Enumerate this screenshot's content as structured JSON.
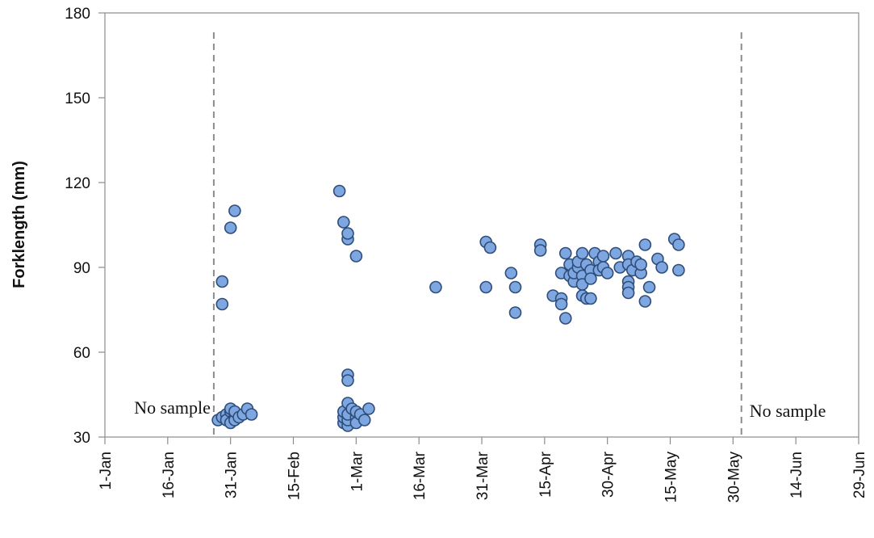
{
  "chart_data": {
    "type": "scatter",
    "title": "",
    "xlabel": "",
    "ylabel": "Forklength (mm)",
    "ylim": [
      30,
      180
    ],
    "yticks": [
      "30",
      "60",
      "90",
      "120",
      "150",
      "180"
    ],
    "xlim": [
      "1-Jan",
      "29-Jun"
    ],
    "xticks": [
      "1-Jan",
      "16-Jan",
      "31-Jan",
      "15-Feb",
      "1-Mar",
      "16-Mar",
      "31-Mar",
      "15-Apr",
      "30-Apr",
      "15-May",
      "30-May",
      "14-Jun",
      "29-Jun"
    ],
    "grid": false,
    "legend": "none",
    "colors": {
      "marker_fill": "#7ea6e0",
      "marker_edge": "#2e4d78",
      "reference_line": "#8c8c8c",
      "axis": "#8c8c8c"
    },
    "reference_lines": [
      {
        "x": "27-Jan",
        "style": "dashed",
        "label": "No sample"
      },
      {
        "x": "1-Jun",
        "style": "dashed",
        "label": "No sample"
      }
    ],
    "points": [
      {
        "x": "28-Jan",
        "y": 36
      },
      {
        "x": "29-Jan",
        "y": 37
      },
      {
        "x": "29-Jan",
        "y": 85
      },
      {
        "x": "29-Jan",
        "y": 77
      },
      {
        "x": "30-Jan",
        "y": 38
      },
      {
        "x": "30-Jan",
        "y": 36
      },
      {
        "x": "31-Jan",
        "y": 35
      },
      {
        "x": "31-Jan",
        "y": 39
      },
      {
        "x": "31-Jan",
        "y": 40
      },
      {
        "x": "31-Jan",
        "y": 104
      },
      {
        "x": "1-Feb",
        "y": 110
      },
      {
        "x": "1-Feb",
        "y": 37
      },
      {
        "x": "1-Feb",
        "y": 36
      },
      {
        "x": "1-Feb",
        "y": 39
      },
      {
        "x": "2-Feb",
        "y": 37
      },
      {
        "x": "3-Feb",
        "y": 38
      },
      {
        "x": "4-Feb",
        "y": 40
      },
      {
        "x": "5-Feb",
        "y": 38
      },
      {
        "x": "26-Feb",
        "y": 117
      },
      {
        "x": "27-Feb",
        "y": 106
      },
      {
        "x": "27-Feb",
        "y": 35
      },
      {
        "x": "27-Feb",
        "y": 37
      },
      {
        "x": "27-Feb",
        "y": 39
      },
      {
        "x": "28-Feb",
        "y": 100
      },
      {
        "x": "28-Feb",
        "y": 102
      },
      {
        "x": "28-Feb",
        "y": 52
      },
      {
        "x": "28-Feb",
        "y": 50
      },
      {
        "x": "28-Feb",
        "y": 42
      },
      {
        "x": "28-Feb",
        "y": 34
      },
      {
        "x": "28-Feb",
        "y": 36
      },
      {
        "x": "28-Feb",
        "y": 38
      },
      {
        "x": "29-Feb",
        "y": 40
      },
      {
        "x": "1-Mar",
        "y": 94
      },
      {
        "x": "1-Mar",
        "y": 37
      },
      {
        "x": "1-Mar",
        "y": 35
      },
      {
        "x": "1-Mar",
        "y": 39
      },
      {
        "x": "2-Mar",
        "y": 38
      },
      {
        "x": "3-Mar",
        "y": 36
      },
      {
        "x": "4-Mar",
        "y": 40
      },
      {
        "x": "20-Mar",
        "y": 83
      },
      {
        "x": "1-Apr",
        "y": 99
      },
      {
        "x": "1-Apr",
        "y": 83
      },
      {
        "x": "2-Apr",
        "y": 97
      },
      {
        "x": "7-Apr",
        "y": 88
      },
      {
        "x": "8-Apr",
        "y": 83
      },
      {
        "x": "8-Apr",
        "y": 74
      },
      {
        "x": "14-Apr",
        "y": 98
      },
      {
        "x": "14-Apr",
        "y": 96
      },
      {
        "x": "17-Apr",
        "y": 80
      },
      {
        "x": "19-Apr",
        "y": 88
      },
      {
        "x": "19-Apr",
        "y": 79
      },
      {
        "x": "19-Apr",
        "y": 77
      },
      {
        "x": "20-Apr",
        "y": 72
      },
      {
        "x": "20-Apr",
        "y": 95
      },
      {
        "x": "21-Apr",
        "y": 91
      },
      {
        "x": "21-Apr",
        "y": 87
      },
      {
        "x": "22-Apr",
        "y": 85
      },
      {
        "x": "22-Apr",
        "y": 88
      },
      {
        "x": "23-Apr",
        "y": 90
      },
      {
        "x": "23-Apr",
        "y": 92
      },
      {
        "x": "24-Apr",
        "y": 95
      },
      {
        "x": "24-Apr",
        "y": 87
      },
      {
        "x": "24-Apr",
        "y": 84
      },
      {
        "x": "24-Apr",
        "y": 80
      },
      {
        "x": "25-Apr",
        "y": 79
      },
      {
        "x": "25-Apr",
        "y": 91
      },
      {
        "x": "26-Apr",
        "y": 89
      },
      {
        "x": "26-Apr",
        "y": 86
      },
      {
        "x": "26-Apr",
        "y": 79
      },
      {
        "x": "27-Apr",
        "y": 95
      },
      {
        "x": "28-Apr",
        "y": 92
      },
      {
        "x": "28-Apr",
        "y": 89
      },
      {
        "x": "29-Apr",
        "y": 94
      },
      {
        "x": "29-Apr",
        "y": 90
      },
      {
        "x": "30-Apr",
        "y": 88
      },
      {
        "x": "2-May",
        "y": 95
      },
      {
        "x": "3-May",
        "y": 90
      },
      {
        "x": "5-May",
        "y": 94
      },
      {
        "x": "5-May",
        "y": 91
      },
      {
        "x": "5-May",
        "y": 85
      },
      {
        "x": "5-May",
        "y": 83
      },
      {
        "x": "5-May",
        "y": 81
      },
      {
        "x": "6-May",
        "y": 89
      },
      {
        "x": "7-May",
        "y": 92
      },
      {
        "x": "8-May",
        "y": 88
      },
      {
        "x": "8-May",
        "y": 91
      },
      {
        "x": "9-May",
        "y": 98
      },
      {
        "x": "9-May",
        "y": 78
      },
      {
        "x": "10-May",
        "y": 83
      },
      {
        "x": "12-May",
        "y": 93
      },
      {
        "x": "13-May",
        "y": 90
      },
      {
        "x": "16-May",
        "y": 100
      },
      {
        "x": "17-May",
        "y": 98
      },
      {
        "x": "17-May",
        "y": 89
      }
    ]
  }
}
